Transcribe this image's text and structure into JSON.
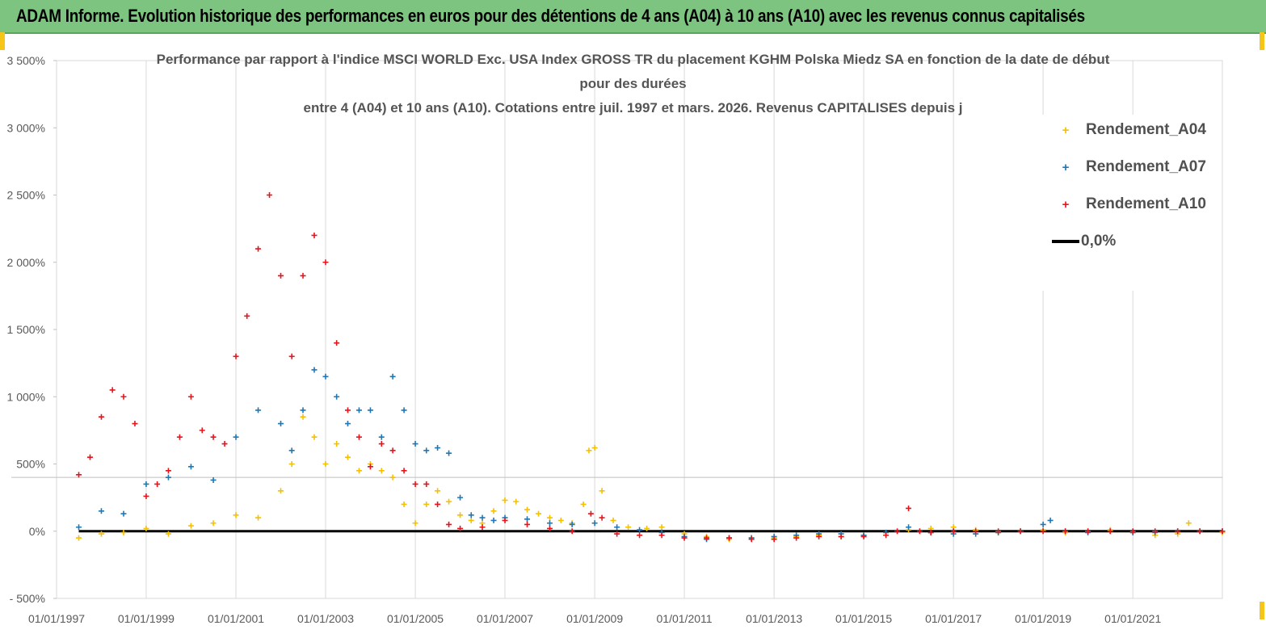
{
  "banner": {
    "title": "ADAM Informe. Evolution historique des performances en euros pour des détentions de 4 ans (A04) à 10 ans (A10) avec les revenus connus capitalisés"
  },
  "colors": {
    "banner_bg": "#7cc47f",
    "a04": "#f5c000",
    "a07": "#1f77b4",
    "a10": "#e8141c",
    "zero": "#000000"
  },
  "chart_data": {
    "type": "scatter",
    "title_lines": [
      "Performance par rapport à l'indice MSCI WORLD Exc. USA Index GROSS TR  du placement KGHM Polska Miedz SA en fonction de la date de début",
      "pour des durées",
      "entre 4 (A04) et 10 ans (A10). Cotations entre juil. 1997 et mars. 2026. Revenus CAPITALISES depuis j"
    ],
    "x_ticks": [
      "01/01/1997",
      "01/01/1999",
      "01/01/2001",
      "01/01/2003",
      "01/01/2005",
      "01/01/2007",
      "01/01/2009",
      "01/01/2011",
      "01/01/2013",
      "01/01/2015",
      "01/01/2017",
      "01/01/2019",
      "01/01/2021"
    ],
    "xlim": [
      "1997-01-01",
      "2022-12-31"
    ],
    "y_ticks": [
      "- 500%",
      "0%",
      "500%",
      "1 000%",
      "1 500%",
      "2 000%",
      "2 500%",
      "3 000%",
      "3 500%"
    ],
    "ylim": [
      -500,
      3500
    ],
    "y_unit": "%",
    "legend_position": "top-right",
    "grid": "vertical lines at year ticks",
    "series": [
      {
        "name": "Rendement_A04",
        "color": "#f5c000",
        "marker": "+",
        "points": [
          [
            "1997-07-01",
            -50
          ],
          [
            "1998-01-01",
            -20
          ],
          [
            "1998-07-01",
            -10
          ],
          [
            "1999-01-01",
            20
          ],
          [
            "1999-07-01",
            -20
          ],
          [
            "2000-01-01",
            40
          ],
          [
            "2000-07-01",
            60
          ],
          [
            "2001-01-01",
            120
          ],
          [
            "2001-07-01",
            100
          ],
          [
            "2002-01-01",
            300
          ],
          [
            "2002-04-01",
            500
          ],
          [
            "2002-07-01",
            850
          ],
          [
            "2002-10-01",
            700
          ],
          [
            "2003-01-01",
            500
          ],
          [
            "2003-04-01",
            650
          ],
          [
            "2003-07-01",
            550
          ],
          [
            "2003-10-01",
            450
          ],
          [
            "2004-01-01",
            500
          ],
          [
            "2004-04-01",
            450
          ],
          [
            "2004-07-01",
            400
          ],
          [
            "2004-10-01",
            200
          ],
          [
            "2005-01-01",
            60
          ],
          [
            "2005-04-01",
            200
          ],
          [
            "2005-07-01",
            300
          ],
          [
            "2005-10-01",
            220
          ],
          [
            "2006-01-01",
            120
          ],
          [
            "2006-04-01",
            80
          ],
          [
            "2006-07-01",
            60
          ],
          [
            "2006-10-01",
            150
          ],
          [
            "2007-01-01",
            230
          ],
          [
            "2007-04-01",
            220
          ],
          [
            "2007-07-01",
            160
          ],
          [
            "2007-10-01",
            130
          ],
          [
            "2008-01-01",
            100
          ],
          [
            "2008-04-01",
            80
          ],
          [
            "2008-07-01",
            60
          ],
          [
            "2008-10-01",
            200
          ],
          [
            "2008-11-15",
            600
          ],
          [
            "2009-01-01",
            620
          ],
          [
            "2009-03-01",
            300
          ],
          [
            "2009-06-01",
            80
          ],
          [
            "2009-10-01",
            30
          ],
          [
            "2010-03-01",
            20
          ],
          [
            "2010-07-01",
            30
          ],
          [
            "2011-01-01",
            -20
          ],
          [
            "2011-07-01",
            -40
          ],
          [
            "2012-01-01",
            -60
          ],
          [
            "2012-07-01",
            -50
          ],
          [
            "2013-01-01",
            -50
          ],
          [
            "2013-07-01",
            -40
          ],
          [
            "2014-01-01",
            -30
          ],
          [
            "2014-07-01",
            -40
          ],
          [
            "2015-01-01",
            -30
          ],
          [
            "2015-07-01",
            -10
          ],
          [
            "2016-01-01",
            10
          ],
          [
            "2016-07-01",
            20
          ],
          [
            "2017-01-01",
            30
          ],
          [
            "2017-07-01",
            10
          ],
          [
            "2018-01-01",
            -10
          ],
          [
            "2018-07-01",
            0
          ],
          [
            "2019-01-01",
            10
          ],
          [
            "2019-07-01",
            -10
          ],
          [
            "2020-01-01",
            0
          ],
          [
            "2020-07-01",
            10
          ],
          [
            "2021-01-01",
            -10
          ],
          [
            "2021-07-01",
            -30
          ],
          [
            "2022-01-01",
            -20
          ],
          [
            "2022-04-01",
            60
          ],
          [
            "2022-07-01",
            0
          ],
          [
            "2022-12-31",
            -10
          ]
        ]
      },
      {
        "name": "Rendement_A07",
        "color": "#1f77b4",
        "marker": "+",
        "points": [
          [
            "1997-07-01",
            30
          ],
          [
            "1998-01-01",
            150
          ],
          [
            "1998-07-01",
            130
          ],
          [
            "1999-01-01",
            350
          ],
          [
            "1999-07-01",
            400
          ],
          [
            "2000-01-01",
            480
          ],
          [
            "2000-07-01",
            380
          ],
          [
            "2001-01-01",
            700
          ],
          [
            "2001-07-01",
            900
          ],
          [
            "2002-01-01",
            800
          ],
          [
            "2002-04-01",
            600
          ],
          [
            "2002-07-01",
            900
          ],
          [
            "2002-10-01",
            1200
          ],
          [
            "2003-01-01",
            1150
          ],
          [
            "2003-04-01",
            1000
          ],
          [
            "2003-07-01",
            800
          ],
          [
            "2003-10-01",
            900
          ],
          [
            "2004-01-01",
            900
          ],
          [
            "2004-04-01",
            700
          ],
          [
            "2004-07-01",
            1150
          ],
          [
            "2004-10-01",
            900
          ],
          [
            "2005-01-01",
            650
          ],
          [
            "2005-04-01",
            600
          ],
          [
            "2005-07-01",
            620
          ],
          [
            "2005-10-01",
            580
          ],
          [
            "2006-01-01",
            250
          ],
          [
            "2006-04-01",
            120
          ],
          [
            "2006-07-01",
            100
          ],
          [
            "2006-10-01",
            80
          ],
          [
            "2007-01-01",
            100
          ],
          [
            "2007-07-01",
            90
          ],
          [
            "2008-01-01",
            60
          ],
          [
            "2008-07-01",
            50
          ],
          [
            "2009-01-01",
            60
          ],
          [
            "2009-07-01",
            30
          ],
          [
            "2010-01-01",
            10
          ],
          [
            "2010-07-01",
            -10
          ],
          [
            "2011-01-01",
            -40
          ],
          [
            "2011-07-01",
            -60
          ],
          [
            "2012-01-01",
            -50
          ],
          [
            "2012-07-01",
            -50
          ],
          [
            "2013-01-01",
            -40
          ],
          [
            "2013-07-01",
            -30
          ],
          [
            "2014-01-01",
            -20
          ],
          [
            "2014-07-01",
            -20
          ],
          [
            "2015-01-01",
            -30
          ],
          [
            "2015-07-01",
            -10
          ],
          [
            "2016-01-01",
            30
          ],
          [
            "2016-07-01",
            -10
          ],
          [
            "2017-01-01",
            -20
          ],
          [
            "2017-07-01",
            -20
          ],
          [
            "2018-01-01",
            -10
          ],
          [
            "2018-07-01",
            0
          ],
          [
            "2019-01-01",
            50
          ],
          [
            "2019-03-01",
            80
          ],
          [
            "2019-07-01",
            0
          ],
          [
            "2020-01-01",
            -10
          ],
          [
            "2020-07-01",
            0
          ],
          [
            "2021-01-01",
            -10
          ],
          [
            "2021-07-01",
            -10
          ],
          [
            "2022-01-01",
            0
          ],
          [
            "2022-07-01",
            0
          ],
          [
            "2022-12-31",
            0
          ]
        ]
      },
      {
        "name": "Rendement_A10",
        "color": "#e8141c",
        "marker": "+",
        "points": [
          [
            "1997-07-01",
            420
          ],
          [
            "1997-10-01",
            550
          ],
          [
            "1998-01-01",
            850
          ],
          [
            "1998-04-01",
            1050
          ],
          [
            "1998-07-01",
            1000
          ],
          [
            "1998-10-01",
            800
          ],
          [
            "1999-01-01",
            260
          ],
          [
            "1999-04-01",
            350
          ],
          [
            "1999-07-01",
            450
          ],
          [
            "1999-10-01",
            700
          ],
          [
            "2000-01-01",
            1000
          ],
          [
            "2000-04-01",
            750
          ],
          [
            "2000-07-01",
            700
          ],
          [
            "2000-10-01",
            650
          ],
          [
            "2001-01-01",
            1300
          ],
          [
            "2001-04-01",
            1600
          ],
          [
            "2001-07-01",
            2100
          ],
          [
            "2001-10-01",
            2500
          ],
          [
            "2002-01-01",
            1900
          ],
          [
            "2002-04-01",
            1300
          ],
          [
            "2002-07-01",
            1900
          ],
          [
            "2002-10-01",
            2200
          ],
          [
            "2003-01-01",
            2000
          ],
          [
            "2003-04-01",
            1400
          ],
          [
            "2003-07-01",
            900
          ],
          [
            "2003-10-01",
            700
          ],
          [
            "2004-01-01",
            480
          ],
          [
            "2004-04-01",
            650
          ],
          [
            "2004-07-01",
            600
          ],
          [
            "2004-10-01",
            450
          ],
          [
            "2005-01-01",
            350
          ],
          [
            "2005-04-01",
            350
          ],
          [
            "2005-07-01",
            200
          ],
          [
            "2005-10-01",
            50
          ],
          [
            "2006-01-01",
            20
          ],
          [
            "2006-07-01",
            30
          ],
          [
            "2007-01-01",
            80
          ],
          [
            "2007-07-01",
            50
          ],
          [
            "2008-01-01",
            20
          ],
          [
            "2008-07-01",
            0
          ],
          [
            "2008-12-01",
            130
          ],
          [
            "2009-03-01",
            100
          ],
          [
            "2009-07-01",
            -20
          ],
          [
            "2010-01-01",
            -30
          ],
          [
            "2010-07-01",
            -30
          ],
          [
            "2011-01-01",
            -50
          ],
          [
            "2011-07-01",
            -50
          ],
          [
            "2012-01-01",
            -50
          ],
          [
            "2012-07-01",
            -60
          ],
          [
            "2013-01-01",
            -60
          ],
          [
            "2013-07-01",
            -50
          ],
          [
            "2014-01-01",
            -40
          ],
          [
            "2014-07-01",
            -40
          ],
          [
            "2015-01-01",
            -40
          ],
          [
            "2015-07-01",
            -30
          ],
          [
            "2015-10-01",
            0
          ],
          [
            "2016-01-01",
            170
          ],
          [
            "2016-04-01",
            0
          ],
          [
            "2016-07-01",
            -10
          ],
          [
            "2017-01-01",
            0
          ],
          [
            "2017-07-01",
            0
          ],
          [
            "2018-01-01",
            0
          ],
          [
            "2018-07-01",
            0
          ],
          [
            "2019-01-01",
            0
          ],
          [
            "2019-07-01",
            0
          ],
          [
            "2020-01-01",
            0
          ],
          [
            "2020-07-01",
            0
          ],
          [
            "2021-01-01",
            0
          ],
          [
            "2021-07-01",
            0
          ],
          [
            "2022-01-01",
            0
          ],
          [
            "2022-07-01",
            0
          ],
          [
            "2022-12-31",
            0
          ]
        ]
      },
      {
        "name": "0,0%",
        "color": "#000000",
        "marker": "line",
        "points": [
          [
            "1997-07-01",
            0
          ],
          [
            "2022-12-31",
            0
          ]
        ]
      }
    ]
  }
}
